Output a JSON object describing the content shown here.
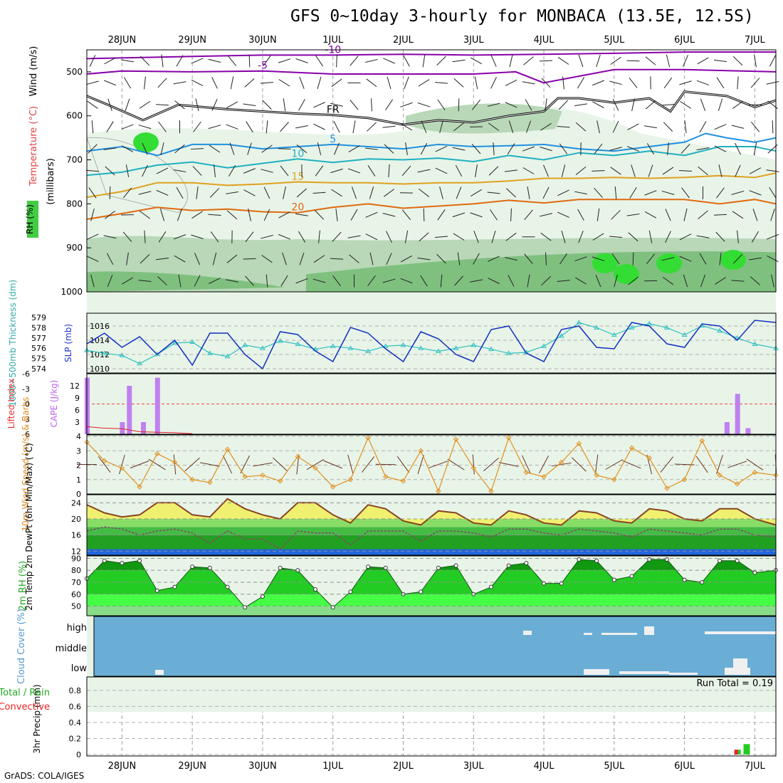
{
  "title": "GFS 0~10day 3-hourly for MONBACA (13.5E, 12.5S)",
  "credit": "GrADS: COLA/IGES",
  "chart_data": {
    "type": "meteogram",
    "date_labels": [
      "28JUN",
      "29JUN",
      "30JUN",
      "1JUL",
      "2JUL",
      "3JUL",
      "4JUL",
      "5JUL",
      "6JUL",
      "7JUL"
    ],
    "time_axis": {
      "start_day": 27.5,
      "end_day": 37.3,
      "label_days": [
        28,
        29,
        30,
        31,
        32,
        33,
        34,
        35,
        36,
        37
      ],
      "note_units": "day-of-month, JUN continuing into JUL"
    },
    "panels": [
      {
        "id": "upper-air",
        "ylabel_rh": "RH (%)",
        "ylabel_temp": "Temperature (°C)",
        "ylabel_wind": "Wind (m/s)",
        "ylabel_level": "(millibars)",
        "yticks": [
          500,
          600,
          700,
          800,
          900,
          1000
        ],
        "ylim": [
          1000,
          450
        ],
        "colors": {
          "rh_light": "#e8f4e8",
          "rh_mid": "#b8d8b8",
          "rh_dark": "#7fc07f",
          "rh_bright": "#33dd33"
        },
        "isotherms": [
          {
            "label": "-10",
            "color": "#8800aa",
            "x": [
              27.5,
              29,
              30,
              31,
              32,
              33,
              34,
              35,
              36,
              37.3
            ],
            "p": [
              470,
              465,
              462,
              462,
              460,
              462,
              460,
              458,
              455,
              455
            ]
          },
          {
            "label": "-5",
            "color": "#8800aa",
            "x": [
              27.5,
              28,
              29,
              30,
              31,
              32,
              33,
              33.6,
              34,
              35,
              36,
              37.3
            ],
            "p": [
              505,
              498,
              500,
              498,
              505,
              505,
              505,
              500,
              525,
              495,
              495,
              500
            ]
          },
          {
            "label": "FR",
            "color": "#000000",
            "x": [
              27.5,
              27.8,
              28.3,
              28.8,
              29.5,
              30,
              30.5,
              31,
              31.5,
              32,
              32.5,
              33,
              33.5,
              34,
              34.2,
              34.5,
              35,
              35.5,
              35.8,
              36,
              36.6,
              37,
              37.3
            ],
            "p": [
              555,
              575,
              610,
              575,
              585,
              590,
              595,
              598,
              605,
              620,
              610,
              615,
              600,
              590,
              560,
              560,
              570,
              560,
              590,
              545,
              555,
              580,
              565
            ]
          },
          {
            "label": "5",
            "color": "#2090e0",
            "x": [
              27.5,
              28,
              28.5,
              29,
              29.5,
              30,
              30.5,
              31,
              31.5,
              32,
              32.5,
              33,
              33.5,
              34,
              34.5,
              35,
              35.5,
              36,
              36.3,
              36.6,
              37,
              37.3
            ],
            "p": [
              680,
              670,
              690,
              665,
              665,
              675,
              670,
              665,
              670,
              675,
              665,
              670,
              668,
              665,
              675,
              680,
              670,
              660,
              640,
              650,
              660,
              650
            ]
          },
          {
            "label": "10",
            "color": "#20b0c0",
            "x": [
              27.5,
              28,
              28.5,
              29,
              29.5,
              30,
              30.5,
              31,
              31.5,
              32,
              32.5,
              33,
              33.5,
              34,
              34.5,
              35,
              35.5,
              36,
              36.5,
              37,
              37.3
            ],
            "p": [
              735,
              728,
              712,
              705,
              718,
              708,
              698,
              706,
              698,
              700,
              696,
              704,
              690,
              700,
              684,
              690,
              680,
              690,
              670,
              670,
              680
            ]
          },
          {
            "label": "15",
            "color": "#e0a020",
            "x": [
              27.5,
              28,
              28.5,
              29,
              29.5,
              30,
              30.5,
              31,
              31.5,
              32,
              32.5,
              33,
              33.5,
              34,
              34.5,
              35,
              35.5,
              36,
              36.5,
              37,
              37.3
            ],
            "p": [
              785,
              772,
              752,
              752,
              758,
              755,
              750,
              752,
              752,
              755,
              752,
              752,
              748,
              742,
              742,
              740,
              742,
              740,
              736,
              740,
              730
            ]
          },
          {
            "label": "20",
            "color": "#e06a10",
            "x": [
              27.5,
              28,
              28.5,
              29,
              29.5,
              30,
              30.5,
              31,
              31.5,
              32,
              32.5,
              33,
              33.5,
              34,
              34.5,
              35,
              35.5,
              36,
              36.5,
              37,
              37.3
            ],
            "p": [
              835,
              822,
              808,
              815,
              812,
              818,
              820,
              808,
              800,
              810,
              805,
              800,
              792,
              798,
              790,
              790,
              790,
              790,
              800,
              790,
              800
            ]
          }
        ]
      },
      {
        "id": "slp-thickness",
        "ylabel_left": "1000~500mb Thickness (dm)",
        "ylabel_right": "SLP (mb)",
        "thickness_ticks": [
          574,
          575,
          576,
          577,
          578,
          579
        ],
        "slp_ticks": [
          1010,
          1012,
          1014,
          1016
        ],
        "colors": {
          "slp": "#1030c0",
          "thickness": "#30c0c0"
        },
        "slp": {
          "x": [
            27.5,
            27.75,
            28,
            28.25,
            28.5,
            28.75,
            29,
            29.25,
            29.5,
            29.75,
            30,
            30.25,
            30.5,
            30.75,
            31,
            31.25,
            31.5,
            31.75,
            32,
            32.25,
            32.5,
            32.75,
            33,
            33.25,
            33.5,
            33.75,
            34,
            34.25,
            34.5,
            34.75,
            35,
            35.25,
            35.5,
            35.75,
            36,
            36.25,
            36.5,
            36.75,
            37,
            37.3
          ],
          "y": [
            1013.5,
            1015,
            1013,
            1014.5,
            1012,
            1014,
            1010.5,
            1015,
            1015,
            1012,
            1010,
            1015.2,
            1014.8,
            1012.5,
            1011,
            1015.8,
            1015,
            1012.8,
            1011,
            1015.2,
            1014.2,
            1012,
            1011,
            1015.5,
            1016,
            1012.2,
            1011,
            1015.5,
            1016,
            1013,
            1012.8,
            1016.5,
            1016,
            1013.5,
            1013,
            1016.3,
            1016,
            1014,
            1016.8,
            1016.5
          ]
        },
        "thickness": {
          "x": [
            27.5,
            27.75,
            28,
            28.25,
            28.5,
            28.75,
            29,
            29.25,
            29.5,
            29.75,
            30,
            30.25,
            30.5,
            30.75,
            31,
            31.25,
            31.5,
            31.75,
            32,
            32.25,
            32.5,
            32.75,
            33,
            33.25,
            33.5,
            33.75,
            34,
            34.25,
            34.5,
            34.75,
            35,
            35.25,
            35.5,
            35.75,
            36,
            36.25,
            36.5,
            36.75,
            37,
            37.3
          ],
          "y": [
            575.8,
            575.5,
            575.3,
            574.5,
            575.4,
            576.5,
            576.6,
            575.5,
            575.2,
            576.3,
            576,
            576.7,
            576.4,
            575.9,
            576.2,
            576,
            575.7,
            576.2,
            576.3,
            576,
            575.7,
            576,
            576.3,
            575.9,
            575.5,
            575.6,
            576.2,
            577.2,
            578.5,
            578,
            577.3,
            578,
            578.4,
            578,
            577.3,
            578.2,
            577.7,
            577,
            576.4,
            576
          ]
        }
      },
      {
        "id": "cape-li",
        "ylabel_cape": "CAPE (J/kg)",
        "ylabel_li": "Lifted Index",
        "cape_ticks": [
          3,
          6,
          9,
          12
        ],
        "li_ticks": [
          6,
          3,
          0,
          -3,
          -6
        ],
        "colors": {
          "cape": "#c080f0",
          "li": "#e02020"
        },
        "cape": {
          "x": [
            27.5,
            28,
            28.1,
            28.3,
            28.5,
            36.6,
            36.75,
            36.9
          ],
          "y": [
            14,
            3,
            12,
            3,
            14,
            3,
            10,
            1.5
          ]
        },
        "lifted_index": {
          "x": [
            27.5,
            27.75,
            28,
            28.25,
            28.5,
            28.75,
            29
          ],
          "y": [
            4.5,
            4.8,
            4.9,
            5.5,
            5.6,
            5.7,
            5.9
          ]
        }
      },
      {
        "id": "wind10m",
        "ylabel": "10m Wind Speed (m/s) & Barbs",
        "yticks": [
          0,
          1,
          2,
          3,
          4
        ],
        "colors": {
          "speed": "#e09020",
          "barb": "#663322"
        },
        "speed": {
          "x": [
            27.5,
            27.75,
            28,
            28.25,
            28.5,
            28.75,
            29,
            29.25,
            29.5,
            29.75,
            30,
            30.25,
            30.5,
            30.75,
            31,
            31.25,
            31.5,
            31.75,
            32,
            32.25,
            32.5,
            32.75,
            33,
            33.25,
            33.5,
            33.75,
            34,
            34.25,
            34.5,
            34.75,
            35,
            35.25,
            35.5,
            35.75,
            36,
            36.25,
            36.5,
            36.75,
            37,
            37.3
          ],
          "y": [
            3.6,
            2.3,
            1.8,
            0.5,
            2.8,
            2.2,
            1.0,
            0.8,
            3.1,
            1.2,
            1.3,
            0.9,
            2.6,
            1.8,
            0.5,
            1.0,
            3.9,
            1.2,
            0.9,
            3.0,
            0.2,
            3.8,
            1.8,
            0.2,
            3.9,
            1.5,
            1.2,
            2.2,
            3.5,
            1.3,
            1.0,
            3.2,
            2.5,
            0.4,
            1.0,
            3.7,
            1.3,
            0.7,
            1.5,
            1.3
          ]
        }
      },
      {
        "id": "temp2m",
        "ylabel": "2m Temp 2m DewPt (6hr Min/Max) (°C)",
        "yticks": [
          12,
          16,
          20,
          24
        ],
        "colors": {
          "temp_fill": "#f0f070",
          "temp_line": "#884422",
          "dewpt": "#884466",
          "band_light": "#88dd66",
          "band_mid": "#44bb44",
          "band_dark": "#22a022",
          "band_base": "#2266dd"
        },
        "temperature": {
          "x": [
            27.5,
            27.75,
            28,
            28.25,
            28.5,
            28.75,
            29,
            29.25,
            29.5,
            29.75,
            30,
            30.25,
            30.5,
            30.75,
            31,
            31.25,
            31.5,
            31.75,
            32,
            32.25,
            32.5,
            32.75,
            33,
            33.25,
            33.5,
            33.75,
            34,
            34.25,
            34.5,
            34.75,
            35,
            35.25,
            35.5,
            35.75,
            36,
            36.25,
            36.5,
            36.75,
            37,
            37.3
          ],
          "y": [
            23.5,
            21.5,
            20.5,
            21,
            24,
            24,
            21,
            20.5,
            25,
            22.5,
            21,
            20,
            24,
            24,
            21,
            19,
            23.5,
            22.5,
            19.5,
            18.5,
            22,
            21.5,
            19,
            18.5,
            22,
            21,
            19,
            18.5,
            22,
            21.5,
            19.5,
            19,
            22.5,
            22,
            20,
            19.5,
            22.5,
            22.5,
            20,
            18.5
          ]
        },
        "dewpoint": {
          "x": [
            27.5,
            27.75,
            28,
            28.25,
            28.5,
            28.75,
            29,
            29.25,
            29.5,
            29.75,
            30,
            30.25,
            30.5,
            30.75,
            31,
            31.25,
            31.5,
            31.75,
            32,
            32.25,
            32.5,
            32.75,
            33,
            33.25,
            33.5,
            33.75,
            34,
            34.25,
            34.5,
            34.75,
            35,
            35.25,
            35.5,
            35.75,
            36,
            36.25,
            36.5,
            36.75,
            37,
            37.3
          ],
          "y": [
            17,
            18,
            17.5,
            16,
            17,
            17.5,
            16.5,
            14,
            17,
            15,
            15,
            12.5,
            17,
            16.5,
            16.5,
            13.5,
            17,
            17,
            17,
            14.5,
            17,
            17,
            16.5,
            15.5,
            17.5,
            17.5,
            16.5,
            16,
            17.5,
            17,
            16.5,
            15.5,
            17.5,
            17,
            16.5,
            16,
            17.5,
            17.5,
            16,
            15.5
          ]
        }
      },
      {
        "id": "rh2m",
        "ylabel": "2m RH (%)",
        "yticks": [
          50,
          60,
          70,
          80,
          90
        ],
        "colors": {
          "dark": "#119911",
          "mid": "#22cc22",
          "bright": "#44ff44",
          "light": "#88dd88"
        },
        "rh": {
          "x": [
            27.5,
            27.75,
            28,
            28.25,
            28.5,
            28.75,
            29,
            29.25,
            29.5,
            29.75,
            30,
            30.25,
            30.5,
            30.75,
            31,
            31.25,
            31.5,
            31.75,
            32,
            32.25,
            32.5,
            32.75,
            33,
            33.25,
            33.5,
            33.75,
            34,
            34.25,
            34.5,
            34.75,
            35,
            35.25,
            35.5,
            35.75,
            36,
            36.25,
            36.5,
            36.75,
            37,
            37.3
          ],
          "y": [
            73,
            88,
            86,
            88,
            63,
            66,
            83,
            82,
            66,
            49,
            58,
            82,
            80,
            64,
            49,
            62,
            83,
            82,
            60,
            62,
            82,
            84,
            60,
            66,
            84,
            86,
            69,
            69,
            89,
            88,
            72,
            75,
            89,
            89,
            72,
            70,
            88,
            88,
            78,
            80
          ]
        }
      },
      {
        "id": "cloud",
        "ylabel": "Cloud Cover (%)",
        "tick_labels": [
          "high",
          "middle",
          "low"
        ],
        "colors": {
          "bg": "#6aaed6",
          "cloud": "#f0f0f0"
        }
      },
      {
        "id": "precip",
        "ylabel": "3hr Precip (mm)",
        "ylabel_total": "Total / Rain",
        "ylabel_conv": "Convective",
        "yticks": [
          0,
          0.2,
          0.4,
          0.6,
          0.8
        ],
        "run_total_text": "Run Total = 0.19",
        "colors": {
          "total": "#22cc22",
          "convective": "#ee2222"
        },
        "total": {
          "x": [
            36.75,
            36.88
          ],
          "y": [
            0.06,
            0.13
          ]
        },
        "convective": {
          "x": [
            36.75
          ],
          "y": [
            0.06
          ]
        }
      }
    ]
  }
}
